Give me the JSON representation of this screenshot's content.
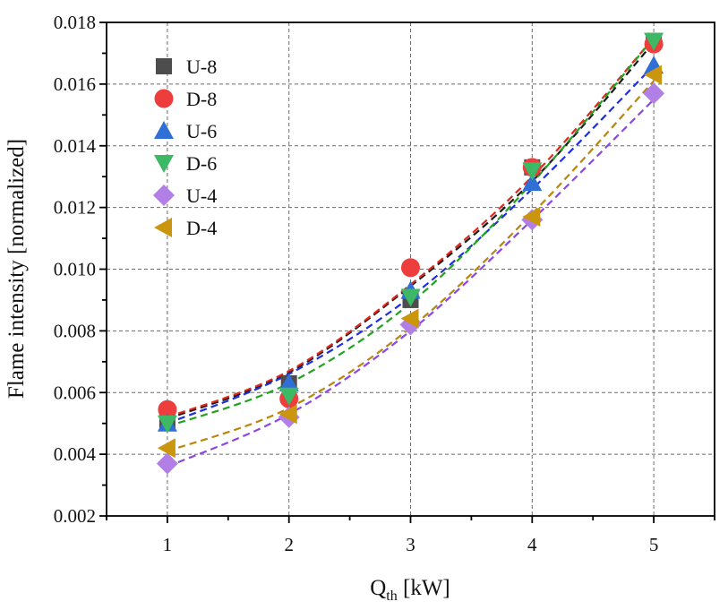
{
  "chart_data": {
    "type": "scatter",
    "title": "",
    "xlabel": {
      "main": "Q",
      "subscript": "th",
      "unit": " [kW]"
    },
    "ylabel": "Flame intensity [normalized]",
    "xlim": [
      0.5,
      5.5
    ],
    "ylim": [
      0.002,
      0.018
    ],
    "grid": true,
    "legend_position": "top-left",
    "x_ticks": [
      1,
      2,
      3,
      4,
      5
    ],
    "y_ticks": [
      0.002,
      0.004,
      0.006,
      0.008,
      0.01,
      0.012,
      0.014,
      0.016,
      0.018
    ],
    "x_tick_labels": [
      "1",
      "2",
      "3",
      "4",
      "5"
    ],
    "y_tick_labels": [
      "0.002",
      "0.004",
      "0.006",
      "0.008",
      "0.010",
      "0.012",
      "0.014",
      "0.016",
      "0.018"
    ],
    "x": [
      1,
      2,
      3,
      4,
      5
    ],
    "series": [
      {
        "name": "U-8",
        "marker": "square",
        "color": "#4d4d4d",
        "fit_color": "#1a1a1a",
        "values": [
          0.0051,
          0.0063,
          0.009,
          0.0133,
          0.0174
        ]
      },
      {
        "name": "D-8",
        "marker": "circle",
        "color": "#ee3d3d",
        "fit_color": "#e0271c",
        "values": [
          0.00545,
          0.0058,
          0.01005,
          0.0133,
          0.0173
        ]
      },
      {
        "name": "U-6",
        "marker": "triangle-up",
        "color": "#2f6fd6",
        "fit_color": "#1f2fe0",
        "values": [
          0.005,
          0.0063,
          0.0093,
          0.0128,
          0.0166
        ]
      },
      {
        "name": "D-6",
        "marker": "triangle-down",
        "color": "#3db865",
        "fit_color": "#23a21f",
        "values": [
          0.005,
          0.0059,
          0.0091,
          0.0132,
          0.0174
        ]
      },
      {
        "name": "U-4",
        "marker": "diamond",
        "color": "#b27fe6",
        "fit_color": "#8c46e8",
        "values": [
          0.0037,
          0.0052,
          0.0082,
          0.0116,
          0.0157
        ]
      },
      {
        "name": "D-4",
        "marker": "triangle-left",
        "color": "#c9960e",
        "fit_color": "#b8860b",
        "values": [
          0.0042,
          0.0053,
          0.0084,
          0.0117,
          0.0163
        ]
      }
    ],
    "fits": [
      {
        "name": "U-8",
        "values": [
          0.00515,
          0.00665,
          0.00945,
          0.01285,
          0.01735
        ]
      },
      {
        "name": "D-8",
        "values": [
          0.0052,
          0.0067,
          0.0095,
          0.013,
          0.0175
        ]
      },
      {
        "name": "U-6",
        "values": [
          0.005,
          0.0066,
          0.0091,
          0.0126,
          0.0166
        ]
      },
      {
        "name": "D-6",
        "values": [
          0.0049,
          0.0063,
          0.0089,
          0.0128,
          0.0175
        ]
      },
      {
        "name": "U-4",
        "values": [
          0.0036,
          0.0053,
          0.008,
          0.0116,
          0.0155
        ]
      },
      {
        "name": "D-4",
        "values": [
          0.0041,
          0.0055,
          0.0081,
          0.0118,
          0.0161
        ]
      }
    ]
  }
}
